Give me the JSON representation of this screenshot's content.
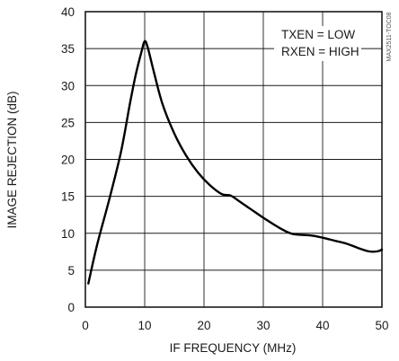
{
  "chart_data": {
    "type": "line",
    "xlabel": "IF FREQUENCY (MHz)",
    "ylabel": "IMAGE REJECTION (dB)",
    "xlim": [
      0,
      50
    ],
    "ylim": [
      0,
      40
    ],
    "xticks": [
      "0",
      "10",
      "20",
      "30",
      "40",
      "50"
    ],
    "yticks": [
      "0",
      "5",
      "10",
      "15",
      "20",
      "25",
      "30",
      "35",
      "40"
    ],
    "grid": true,
    "annotations": [
      "TXEN = LOW",
      "RXEN = HIGH"
    ],
    "figure_code": "MAX2511-TOC08",
    "series": [
      {
        "x": [
          0.5,
          2,
          4,
          6,
          7.5,
          8.5,
          9.5,
          10,
          10.5,
          11.5,
          13,
          15,
          17,
          19,
          21,
          23,
          24.5,
          26,
          28,
          30,
          33,
          35,
          38,
          40,
          42,
          44,
          46,
          47.5,
          48.5,
          49.5,
          50
        ],
        "y": [
          3.2,
          8.5,
          14.5,
          21,
          27.5,
          31.5,
          34.7,
          36.0,
          35.2,
          32,
          27.5,
          23.5,
          20.5,
          18.2,
          16.5,
          15.3,
          15.1,
          14.3,
          13.2,
          12.1,
          10.6,
          9.9,
          9.7,
          9.4,
          9.0,
          8.6,
          8.0,
          7.6,
          7.5,
          7.6,
          7.8
        ]
      }
    ]
  }
}
